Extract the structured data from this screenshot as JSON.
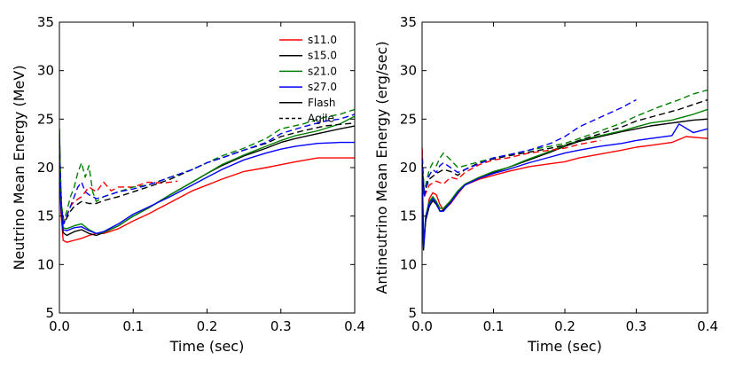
{
  "chart_data": [
    {
      "type": "line",
      "title": "",
      "xlabel": "Time (sec)",
      "ylabel": "Neutrino Mean Energy (MeV)",
      "xlim": [
        0.0,
        0.4
      ],
      "ylim": [
        5,
        35
      ],
      "xticks": [
        0.0,
        0.1,
        0.2,
        0.3,
        0.4
      ],
      "xtick_labels": [
        "0.0",
        "0.1",
        "0.2",
        "0.3",
        "0.4"
      ],
      "yticks": [
        5,
        10,
        15,
        20,
        25,
        30,
        35
      ],
      "ytick_labels": [
        "5",
        "10",
        "15",
        "20",
        "25",
        "30",
        "35"
      ],
      "legend": {
        "placement": "top-right",
        "entries": [
          {
            "label": "s11.0",
            "color": "#ff0000",
            "style": "solid"
          },
          {
            "label": "s15.0",
            "color": "#000000",
            "style": "solid"
          },
          {
            "label": "s21.0",
            "color": "#008000",
            "style": "solid"
          },
          {
            "label": "s27.0",
            "color": "#0000ff",
            "style": "solid"
          },
          {
            "label": "Flash",
            "color": "#000000",
            "style": "solid"
          },
          {
            "label": "Agile",
            "color": "#000000",
            "style": "dashed"
          }
        ]
      },
      "series": [
        {
          "name": "s11.0 Flash",
          "color": "#ff0000",
          "style": "solid",
          "x": [
            0.0,
            0.002,
            0.005,
            0.01,
            0.02,
            0.03,
            0.04,
            0.05,
            0.06,
            0.08,
            0.1,
            0.12,
            0.15,
            0.18,
            0.2,
            0.22,
            0.25,
            0.28,
            0.3,
            0.32,
            0.35,
            0.38,
            0.4
          ],
          "y": [
            23.5,
            15.5,
            12.5,
            12.3,
            12.5,
            12.7,
            13.0,
            13.2,
            13.2,
            13.7,
            14.5,
            15.2,
            16.4,
            17.6,
            18.2,
            18.8,
            19.6,
            20.0,
            20.3,
            20.6,
            21.0,
            21.0,
            21.0
          ]
        },
        {
          "name": "s15.0 Flash",
          "color": "#000000",
          "style": "solid",
          "x": [
            0.0,
            0.002,
            0.005,
            0.01,
            0.02,
            0.03,
            0.04,
            0.05,
            0.06,
            0.08,
            0.1,
            0.12,
            0.15,
            0.18,
            0.2,
            0.22,
            0.25,
            0.28,
            0.3,
            0.32,
            0.35,
            0.38,
            0.4
          ],
          "y": [
            24.0,
            16.0,
            13.3,
            13.0,
            13.4,
            13.6,
            13.2,
            13.0,
            13.3,
            14.0,
            15.0,
            15.8,
            17.2,
            18.5,
            19.4,
            20.2,
            21.2,
            22.0,
            22.6,
            23.0,
            23.5,
            24.0,
            24.3
          ]
        },
        {
          "name": "s21.0 Flash",
          "color": "#008000",
          "style": "solid",
          "x": [
            0.0,
            0.002,
            0.005,
            0.01,
            0.02,
            0.03,
            0.04,
            0.05,
            0.06,
            0.08,
            0.1,
            0.12,
            0.15,
            0.18,
            0.2,
            0.22,
            0.25,
            0.28,
            0.3,
            0.32,
            0.35,
            0.38,
            0.4
          ],
          "y": [
            24.0,
            16.5,
            13.8,
            13.7,
            14.0,
            14.2,
            13.6,
            13.2,
            13.3,
            14.0,
            15.0,
            15.8,
            17.2,
            18.5,
            19.4,
            20.3,
            21.3,
            22.2,
            22.8,
            23.3,
            23.8,
            24.5,
            25.3
          ]
        },
        {
          "name": "s27.0 Flash",
          "color": "#0000ff",
          "style": "solid",
          "x": [
            0.0,
            0.002,
            0.005,
            0.01,
            0.02,
            0.03,
            0.04,
            0.05,
            0.06,
            0.08,
            0.1,
            0.12,
            0.15,
            0.18,
            0.2,
            0.22,
            0.25,
            0.28,
            0.3,
            0.32,
            0.35,
            0.38,
            0.4
          ],
          "y": [
            23.0,
            16.0,
            13.6,
            13.5,
            13.8,
            13.9,
            13.5,
            13.2,
            13.4,
            14.2,
            15.2,
            15.9,
            17.0,
            18.2,
            19.0,
            19.8,
            20.8,
            21.5,
            21.9,
            22.2,
            22.5,
            22.6,
            22.6
          ]
        },
        {
          "name": "s11.0 Agile",
          "color": "#ff0000",
          "style": "dashed",
          "x": [
            0.0,
            0.003,
            0.006,
            0.01,
            0.015,
            0.02,
            0.03,
            0.04,
            0.05,
            0.06,
            0.07,
            0.08,
            0.1,
            0.12,
            0.14,
            0.16
          ],
          "y": [
            22.0,
            16.0,
            14.5,
            15.0,
            16.0,
            16.5,
            17.0,
            18.0,
            17.5,
            18.5,
            17.6,
            18.0,
            18.0,
            18.5,
            18.4,
            18.6
          ]
        },
        {
          "name": "s15.0 Agile",
          "color": "#000000",
          "style": "dashed",
          "x": [
            0.0,
            0.003,
            0.006,
            0.01,
            0.015,
            0.02,
            0.03,
            0.04,
            0.05,
            0.06,
            0.08,
            0.1,
            0.12,
            0.15,
            0.18,
            0.2,
            0.22,
            0.25,
            0.28,
            0.3,
            0.33,
            0.36,
            0.4
          ],
          "y": [
            21.0,
            15.8,
            14.3,
            14.8,
            15.5,
            16.0,
            16.5,
            16.3,
            16.3,
            16.6,
            17.0,
            17.5,
            18.0,
            18.8,
            19.8,
            20.5,
            21.0,
            21.8,
            22.5,
            23.2,
            23.8,
            24.3,
            24.6
          ]
        },
        {
          "name": "s21.0 Agile",
          "color": "#008000",
          "style": "dashed",
          "x": [
            0.0,
            0.003,
            0.006,
            0.01,
            0.015,
            0.02,
            0.025,
            0.03,
            0.035,
            0.04,
            0.045,
            0.05,
            0.06,
            0.08,
            0.1,
            0.12,
            0.15,
            0.18,
            0.2,
            0.22,
            0.25,
            0.28,
            0.3,
            0.33,
            0.36,
            0.38,
            0.4
          ],
          "y": [
            22.0,
            16.0,
            14.5,
            15.5,
            17.0,
            18.0,
            19.5,
            20.5,
            19.0,
            20.2,
            17.5,
            16.5,
            17.0,
            17.5,
            18.0,
            18.2,
            19.0,
            19.8,
            20.5,
            21.2,
            22.0,
            23.0,
            24.0,
            24.5,
            25.2,
            25.5,
            26.0
          ]
        },
        {
          "name": "s27.0 Agile",
          "color": "#0000ff",
          "style": "dashed",
          "x": [
            0.0,
            0.003,
            0.006,
            0.01,
            0.015,
            0.02,
            0.025,
            0.03,
            0.035,
            0.04,
            0.05,
            0.06,
            0.08,
            0.1,
            0.12,
            0.15,
            0.18,
            0.2,
            0.22,
            0.25,
            0.28,
            0.3,
            0.33,
            0.36,
            0.38,
            0.4
          ],
          "y": [
            21.5,
            15.8,
            14.2,
            15.0,
            16.0,
            17.0,
            18.0,
            18.5,
            17.5,
            17.2,
            16.8,
            17.0,
            17.5,
            17.8,
            18.2,
            19.0,
            19.8,
            20.5,
            21.0,
            21.8,
            22.6,
            23.5,
            24.2,
            24.8,
            25.0,
            25.5
          ]
        }
      ]
    },
    {
      "type": "line",
      "title": "",
      "xlabel": "Time (sec)",
      "ylabel": "Antineutrino Mean Energy (erg/sec)",
      "xlim": [
        0.0,
        0.4
      ],
      "ylim": [
        5,
        35
      ],
      "xticks": [
        0.0,
        0.1,
        0.2,
        0.3,
        0.4
      ],
      "xtick_labels": [
        "0.0",
        "0.1",
        "0.2",
        "0.3",
        "0.4"
      ],
      "yticks": [
        5,
        10,
        15,
        20,
        25,
        30,
        35
      ],
      "ytick_labels": [
        "5",
        "10",
        "15",
        "20",
        "25",
        "30",
        "35"
      ],
      "series": [
        {
          "name": "s11.0 Flash",
          "color": "#ff0000",
          "style": "solid",
          "x": [
            0.0,
            0.002,
            0.005,
            0.01,
            0.015,
            0.02,
            0.025,
            0.03,
            0.04,
            0.05,
            0.06,
            0.08,
            0.1,
            0.12,
            0.15,
            0.18,
            0.2,
            0.22,
            0.25,
            0.28,
            0.3,
            0.32,
            0.35,
            0.37,
            0.4
          ],
          "y": [
            22.0,
            12.0,
            14.5,
            16.8,
            17.4,
            17.2,
            16.2,
            15.6,
            16.3,
            17.3,
            18.2,
            18.8,
            19.2,
            19.6,
            20.1,
            20.4,
            20.6,
            21.0,
            21.4,
            21.8,
            22.1,
            22.3,
            22.6,
            23.2,
            23.0
          ]
        },
        {
          "name": "s15.0 Flash",
          "color": "#000000",
          "style": "solid",
          "x": [
            0.0,
            0.002,
            0.005,
            0.01,
            0.015,
            0.02,
            0.025,
            0.03,
            0.04,
            0.05,
            0.06,
            0.08,
            0.1,
            0.12,
            0.15,
            0.18,
            0.2,
            0.22,
            0.25,
            0.28,
            0.3,
            0.32,
            0.35,
            0.38,
            0.4
          ],
          "y": [
            20.0,
            11.5,
            14.5,
            16.0,
            16.6,
            16.2,
            15.5,
            15.6,
            16.5,
            17.5,
            18.2,
            18.9,
            19.5,
            20.0,
            20.8,
            21.6,
            22.2,
            22.7,
            23.2,
            23.7,
            24.0,
            24.3,
            24.6,
            24.9,
            25.0
          ]
        },
        {
          "name": "s21.0 Flash",
          "color": "#008000",
          "style": "solid",
          "x": [
            0.0,
            0.002,
            0.005,
            0.01,
            0.015,
            0.02,
            0.025,
            0.03,
            0.04,
            0.05,
            0.06,
            0.08,
            0.1,
            0.12,
            0.15,
            0.18,
            0.2,
            0.22,
            0.25,
            0.28,
            0.3,
            0.32,
            0.35,
            0.38,
            0.4
          ],
          "y": [
            21.0,
            12.0,
            15.0,
            16.5,
            17.0,
            16.5,
            15.8,
            15.8,
            16.6,
            17.6,
            18.3,
            19.0,
            19.6,
            20.0,
            20.9,
            21.7,
            22.3,
            22.8,
            23.3,
            23.8,
            24.2,
            24.6,
            24.9,
            25.5,
            26.0
          ]
        },
        {
          "name": "s27.0 Flash",
          "color": "#0000ff",
          "style": "solid",
          "x": [
            0.0,
            0.002,
            0.005,
            0.01,
            0.015,
            0.02,
            0.025,
            0.03,
            0.04,
            0.05,
            0.06,
            0.08,
            0.1,
            0.12,
            0.15,
            0.18,
            0.2,
            0.22,
            0.25,
            0.28,
            0.3,
            0.32,
            0.35,
            0.36,
            0.38,
            0.4
          ],
          "y": [
            21.0,
            11.8,
            14.8,
            16.3,
            16.8,
            16.3,
            15.5,
            15.5,
            16.4,
            17.4,
            18.2,
            18.9,
            19.4,
            19.8,
            20.5,
            21.1,
            21.5,
            21.8,
            22.2,
            22.5,
            22.8,
            23.0,
            23.3,
            24.5,
            23.6,
            24.0
          ]
        },
        {
          "name": "s11.0 Agile",
          "color": "#ff0000",
          "style": "dashed",
          "x": [
            0.0,
            0.003,
            0.006,
            0.01,
            0.02,
            0.03,
            0.04,
            0.05,
            0.06,
            0.08,
            0.1,
            0.12,
            0.15,
            0.18,
            0.2,
            0.22,
            0.25
          ],
          "y": [
            22.0,
            17.0,
            17.5,
            18.2,
            18.6,
            18.3,
            19.0,
            18.8,
            19.5,
            20.3,
            20.8,
            21.0,
            21.5,
            21.8,
            22.0,
            22.4,
            22.8
          ]
        },
        {
          "name": "s15.0 Agile",
          "color": "#000000",
          "style": "dashed",
          "x": [
            0.0,
            0.003,
            0.006,
            0.01,
            0.02,
            0.03,
            0.04,
            0.05,
            0.06,
            0.08,
            0.1,
            0.12,
            0.15,
            0.18,
            0.2,
            0.22,
            0.25,
            0.28,
            0.3,
            0.33,
            0.36,
            0.38,
            0.4
          ],
          "y": [
            20.5,
            17.2,
            18.0,
            18.8,
            19.4,
            19.8,
            19.6,
            19.2,
            19.8,
            20.5,
            20.9,
            21.2,
            21.6,
            22.0,
            22.3,
            22.8,
            23.5,
            24.2,
            24.8,
            25.4,
            26.0,
            26.5,
            27.0
          ]
        },
        {
          "name": "s21.0 Agile",
          "color": "#008000",
          "style": "dashed",
          "x": [
            0.0,
            0.003,
            0.006,
            0.01,
            0.015,
            0.02,
            0.025,
            0.03,
            0.04,
            0.05,
            0.06,
            0.08,
            0.1,
            0.12,
            0.15,
            0.18,
            0.2,
            0.22,
            0.25,
            0.28,
            0.3,
            0.33,
            0.36,
            0.38,
            0.4
          ],
          "y": [
            21.0,
            17.5,
            18.5,
            19.8,
            20.5,
            20.2,
            21.0,
            21.5,
            20.8,
            20.0,
            20.2,
            20.6,
            21.0,
            21.3,
            21.8,
            22.2,
            22.5,
            23.0,
            23.8,
            24.6,
            25.3,
            26.2,
            27.0,
            27.6,
            28.0
          ]
        },
        {
          "name": "s27.0 Agile",
          "color": "#0000ff",
          "style": "dashed",
          "x": [
            0.0,
            0.003,
            0.006,
            0.01,
            0.015,
            0.02,
            0.025,
            0.03,
            0.04,
            0.05,
            0.06,
            0.08,
            0.1,
            0.12,
            0.15,
            0.18,
            0.2,
            0.22,
            0.25,
            0.28,
            0.3
          ],
          "y": [
            21.0,
            17.0,
            18.0,
            19.2,
            19.8,
            19.5,
            20.2,
            20.5,
            20.0,
            19.5,
            19.8,
            20.4,
            21.0,
            21.3,
            21.8,
            22.5,
            23.2,
            24.2,
            25.2,
            26.2,
            27.0
          ]
        }
      ]
    }
  ]
}
